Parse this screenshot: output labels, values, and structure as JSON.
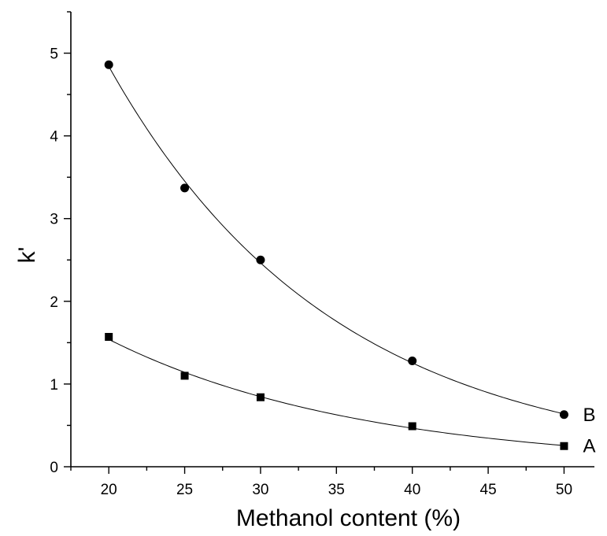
{
  "chart_data": {
    "type": "scatter",
    "title": "",
    "xlabel": "Methanol content (%)",
    "ylabel": "k'",
    "xlim": [
      17.5,
      52
    ],
    "ylim": [
      0,
      5.5
    ],
    "x_ticks": [
      20,
      25,
      30,
      35,
      40,
      45,
      50
    ],
    "y_ticks": [
      0,
      1,
      2,
      3,
      4,
      5
    ],
    "grid": false,
    "legend": "none",
    "series": [
      {
        "label": "A",
        "marker": "square",
        "fit": "exponential",
        "x": [
          20,
          25,
          30,
          40,
          50
        ],
        "y": [
          1.57,
          1.1,
          0.84,
          0.49,
          0.25
        ]
      },
      {
        "label": "B",
        "marker": "circle",
        "fit": "exponential",
        "x": [
          20,
          25,
          30,
          40,
          50
        ],
        "y": [
          4.86,
          3.37,
          2.5,
          1.28,
          0.63
        ]
      }
    ]
  }
}
